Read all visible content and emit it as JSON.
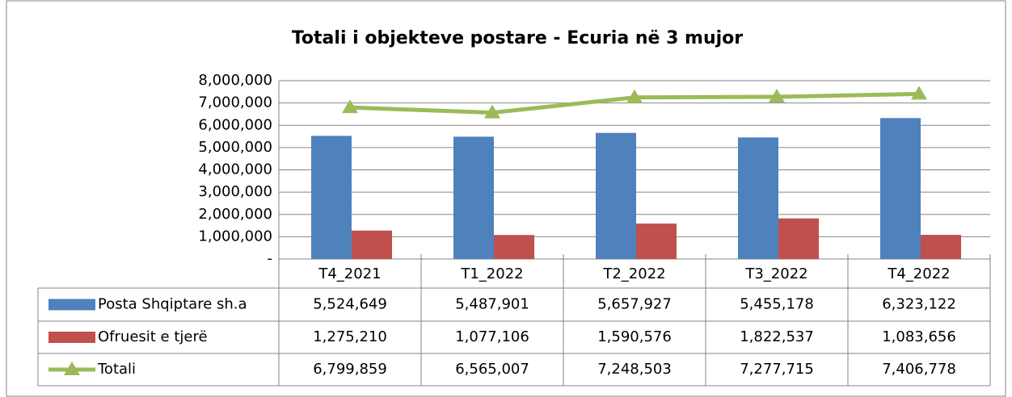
{
  "chart_data": {
    "type": "bar-line",
    "title": "Totali i objekteve postare - Ecuria në 3 mujor",
    "categories": [
      "T4_2021",
      "T1_2022",
      "T2_2022",
      "T3_2022",
      "T4_2022"
    ],
    "series": [
      {
        "name": "Posta Shqiptare sh.a",
        "type": "bar",
        "color": "#4f81bd",
        "values": [
          5524649,
          5487901,
          5657927,
          5455178,
          6323122
        ],
        "value_labels": [
          "5,524,649",
          "5,487,901",
          "5,657,927",
          "5,455,178",
          "6,323,122"
        ]
      },
      {
        "name": "Ofruesit e tjerë",
        "type": "bar",
        "color": "#c0504d",
        "values": [
          1275210,
          1077106,
          1590576,
          1822537,
          1083656
        ],
        "value_labels": [
          "1,275,210",
          "1,077,106",
          "1,590,576",
          "1,822,537",
          "1,083,656"
        ]
      },
      {
        "name": "Totali",
        "type": "line",
        "color": "#9bbb59",
        "values": [
          6799859,
          6565007,
          7248503,
          7277715,
          7406778
        ],
        "value_labels": [
          "6,799,859",
          "6,565,007",
          "7,248,503",
          "7,277,715",
          "7,406,778"
        ]
      }
    ],
    "ylim": [
      0,
      8000000
    ],
    "yticks": [
      {
        "value": 0,
        "label": "-"
      },
      {
        "value": 1000000,
        "label": "1,000,000"
      },
      {
        "value": 2000000,
        "label": "2,000,000"
      },
      {
        "value": 3000000,
        "label": "3,000,000"
      },
      {
        "value": 4000000,
        "label": "4,000,000"
      },
      {
        "value": 5000000,
        "label": "5,000,000"
      },
      {
        "value": 6000000,
        "label": "6,000,000"
      },
      {
        "value": 7000000,
        "label": "7,000,000"
      },
      {
        "value": 8000000,
        "label": "8,000,000"
      }
    ],
    "grid": true
  }
}
